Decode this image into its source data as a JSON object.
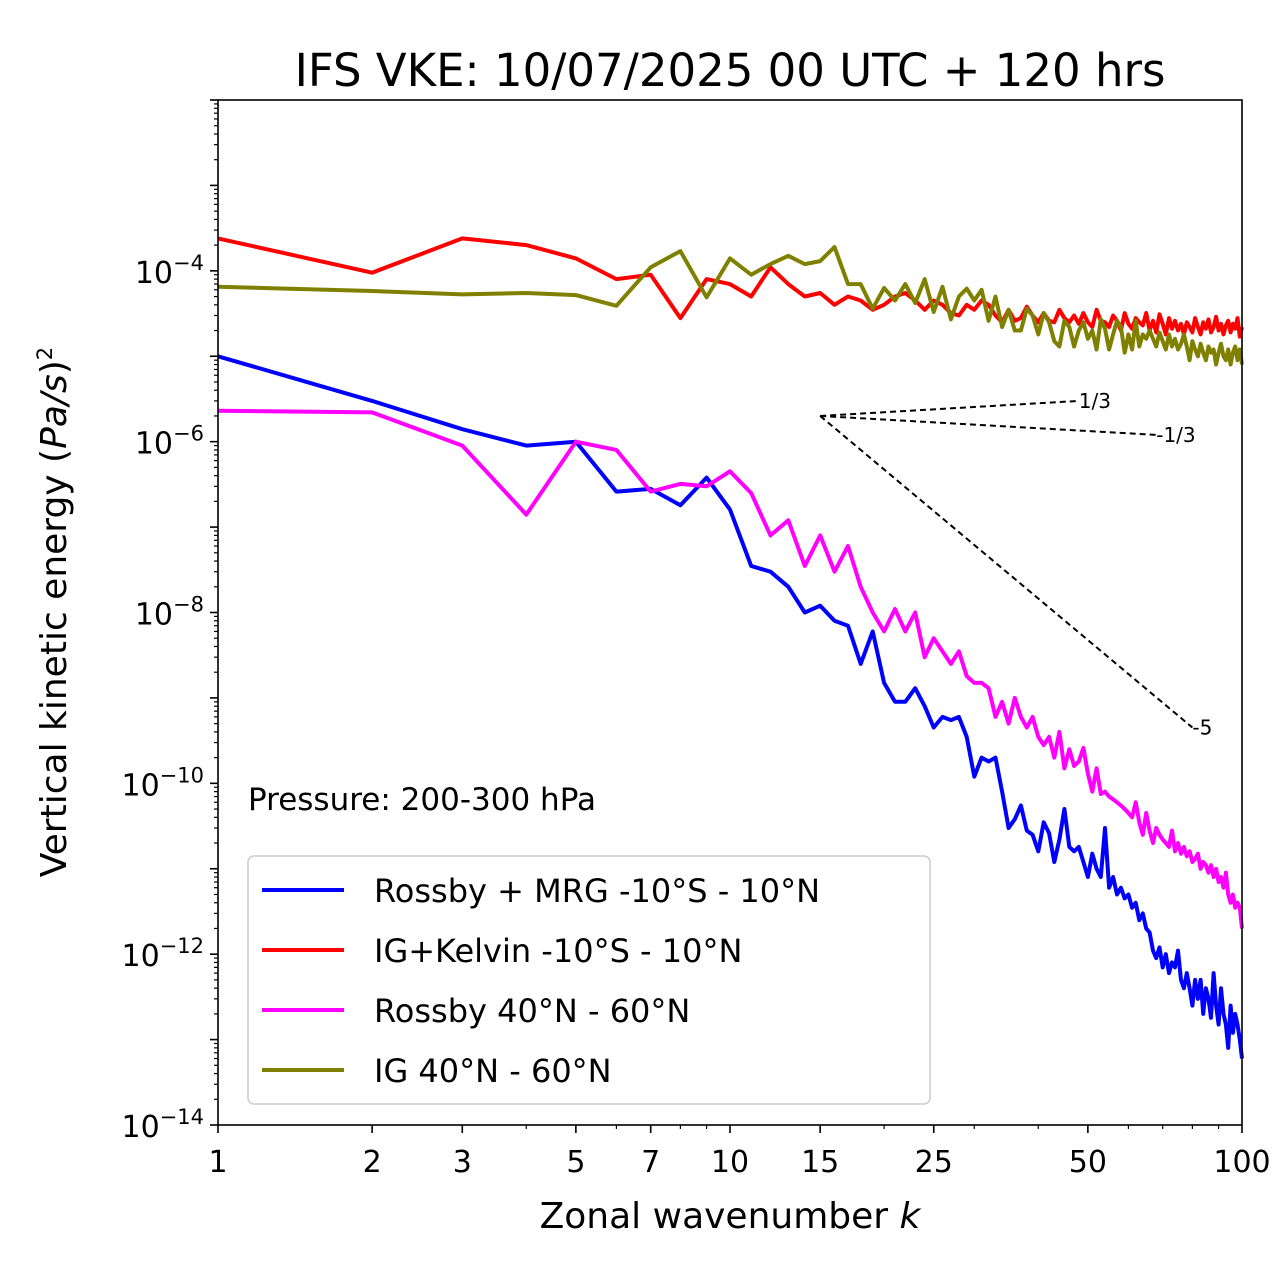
{
  "chart_data": {
    "type": "line",
    "title": "IFS VKE: 10/07/2025 00 UTC + 120 hrs",
    "xlabel_text": "Zonal wavenumber ",
    "xlabel_italic": "k",
    "ylabel": {
      "prefix": "Vertical kinetic energy (",
      "unit_italic": "Pa/s",
      "suffix": ")",
      "exponent": "2"
    },
    "xscale": "log",
    "yscale": "log",
    "xlim": [
      1,
      100
    ],
    "ylim": [
      1e-14,
      0.01
    ],
    "xticks": [
      {
        "value": 1,
        "label": "1"
      },
      {
        "value": 2,
        "label": "2"
      },
      {
        "value": 3,
        "label": "3"
      },
      {
        "value": 5,
        "label": "5"
      },
      {
        "value": 7,
        "label": "7"
      },
      {
        "value": 10,
        "label": "10"
      },
      {
        "value": 15,
        "label": "15"
      },
      {
        "value": 25,
        "label": "25"
      },
      {
        "value": 50,
        "label": "50"
      },
      {
        "value": 100,
        "label": "100"
      }
    ],
    "yticks": [
      {
        "value": -4,
        "base": "10",
        "exp": "−4"
      },
      {
        "value": -6,
        "base": "10",
        "exp": "−6"
      },
      {
        "value": -8,
        "base": "10",
        "exp": "−8"
      },
      {
        "value": -10,
        "base": "10",
        "exp": "−10"
      },
      {
        "value": -12,
        "base": "10",
        "exp": "−12"
      },
      {
        "value": -14,
        "base": "10",
        "exp": "−14"
      }
    ],
    "annotation": "Pressure: 200-300 hPa",
    "legend_position": "lower-left",
    "series": [
      {
        "name": "Rossby + MRG -10°S - 10°N",
        "color": "#0000ff",
        "x": [
          1,
          2,
          3,
          4,
          5,
          6,
          7,
          8,
          9,
          10,
          11,
          12,
          13,
          14,
          15,
          16,
          17,
          18,
          19,
          20,
          21,
          22,
          23,
          24,
          25,
          26,
          27,
          28,
          29,
          30,
          31,
          32,
          33,
          34,
          35,
          36,
          37,
          38,
          39,
          40,
          41,
          42,
          43,
          44,
          45,
          46,
          47,
          48,
          49,
          50,
          51,
          52,
          53,
          54,
          55,
          56,
          57,
          58,
          59,
          60,
          61,
          62,
          63,
          64,
          65,
          66,
          67,
          68,
          69,
          70,
          71,
          72,
          73,
          74,
          75,
          76,
          77,
          78,
          79,
          80,
          81,
          82,
          83,
          84,
          85,
          86,
          87,
          88,
          89,
          90,
          91,
          92,
          93,
          94,
          95,
          96,
          97,
          98,
          99,
          100
        ],
        "y": [
          1e-05,
          3e-06,
          1.4e-06,
          9e-07,
          1e-06,
          2.6e-07,
          2.8e-07,
          1.8e-07,
          3.8e-07,
          1.6e-07,
          3.5e-08,
          3e-08,
          2e-08,
          1e-08,
          1.2e-08,
          8e-09,
          7e-09,
          2.5e-09,
          6e-09,
          1.5e-09,
          9e-10,
          9e-10,
          1.3e-09,
          8e-10,
          4.5e-10,
          6e-10,
          5.5e-10,
          6e-10,
          3.5e-10,
          1.2e-10,
          2e-10,
          1.8e-10,
          2e-10,
          8e-11,
          3e-11,
          3.8e-11,
          5.5e-11,
          2.8e-11,
          2.5e-11,
          1.6e-11,
          3.5e-11,
          2.6e-11,
          1.2e-11,
          2.2e-11,
          5e-11,
          1.8e-11,
          1.6e-11,
          1.8e-11,
          1.2e-11,
          8e-12,
          1.5e-11,
          1e-11,
          8e-12,
          3e-11,
          6e-12,
          8e-12,
          5e-12,
          6e-12,
          4.5e-12,
          5e-12,
          3.5e-12,
          4e-12,
          2.5e-12,
          3e-12,
          2e-12,
          1.8e-12,
          1.1e-12,
          9e-13,
          1.2e-12,
          7e-13,
          1e-12,
          6e-13,
          8e-13,
          7e-13,
          1.1e-12,
          5e-13,
          4e-13,
          6e-13,
          4e-13,
          2.5e-13,
          5e-13,
          3e-13,
          5e-13,
          2e-13,
          4e-13,
          3e-13,
          1.8e-13,
          6e-13,
          2.5e-13,
          1.5e-13,
          4e-13,
          2e-13,
          1.5e-13,
          8e-14,
          2.5e-13,
          1.2e-13,
          2e-13,
          1.5e-13,
          1e-13,
          6e-14
        ]
      },
      {
        "name": "IG+Kelvin -10°S - 10°N",
        "color": "#ff0000",
        "x": [
          1,
          2,
          3,
          4,
          5,
          6,
          7,
          8,
          9,
          10,
          11,
          12,
          13,
          14,
          15,
          16,
          17,
          18,
          19,
          20,
          21,
          22,
          23,
          24,
          25,
          26,
          27,
          28,
          29,
          30,
          31,
          32,
          33,
          34,
          35,
          36,
          37,
          38,
          39,
          40,
          41,
          42,
          43,
          44,
          45,
          46,
          47,
          48,
          49,
          50,
          51,
          52,
          53,
          54,
          55,
          56,
          57,
          58,
          59,
          60,
          61,
          62,
          63,
          64,
          65,
          66,
          67,
          68,
          69,
          70,
          71,
          72,
          73,
          74,
          75,
          76,
          77,
          78,
          79,
          80,
          81,
          82,
          83,
          84,
          85,
          86,
          87,
          88,
          89,
          90,
          91,
          92,
          93,
          94,
          95,
          96,
          97,
          98,
          99,
          100
        ],
        "y": [
          0.00024,
          9.5e-05,
          0.00024,
          0.0002,
          0.00014,
          8e-05,
          9e-05,
          2.8e-05,
          8e-05,
          7e-05,
          5e-05,
          0.00011,
          7e-05,
          5e-05,
          5.5e-05,
          4e-05,
          5e-05,
          4.5e-05,
          3.5e-05,
          4e-05,
          5e-05,
          5.5e-05,
          4.5e-05,
          3.5e-05,
          4.5e-05,
          4e-05,
          3.2e-05,
          3e-05,
          4e-05,
          3.5e-05,
          4.5e-05,
          4e-05,
          3e-05,
          2.5e-05,
          3.5e-05,
          2.6e-05,
          2.8e-05,
          3.8e-05,
          3e-05,
          2.5e-05,
          3.2e-05,
          2.6e-05,
          2.5e-05,
          3.5e-05,
          2.8e-05,
          2.5e-05,
          3e-05,
          2.4e-05,
          3.2e-05,
          2.5e-05,
          2.2e-05,
          3.5e-05,
          2.6e-05,
          2.5e-05,
          2.2e-05,
          3e-05,
          2.6e-05,
          2e-05,
          3.2e-05,
          2.4e-05,
          2.1e-05,
          2.8e-05,
          2.5e-05,
          2.3e-05,
          3.2e-05,
          2e-05,
          2.6e-05,
          1.9e-05,
          3.1e-05,
          2.4e-05,
          1.8e-05,
          2.8e-05,
          2.1e-05,
          2.6e-05,
          2e-05,
          2.4e-05,
          1.8e-05,
          2.5e-05,
          2.2e-05,
          1.9e-05,
          2.8e-05,
          2.2e-05,
          1.8e-05,
          2.5e-05,
          2.1e-05,
          2.7e-05,
          1.9e-05,
          2.2e-05,
          2.9e-05,
          2e-05,
          2.4e-05,
          1.8e-05,
          2.3e-05,
          2.6e-05,
          1.9e-05,
          2.4e-05,
          2.1e-05,
          2.8e-05,
          1.7e-05,
          2.2e-05
        ]
      },
      {
        "name": "Rossby 40°N - 60°N",
        "color": "#ff00ff",
        "x": [
          1,
          2,
          3,
          4,
          5,
          6,
          7,
          8,
          9,
          10,
          11,
          12,
          13,
          14,
          15,
          16,
          17,
          18,
          19,
          20,
          21,
          22,
          23,
          24,
          25,
          26,
          27,
          28,
          29,
          30,
          31,
          32,
          33,
          34,
          35,
          36,
          37,
          38,
          39,
          40,
          41,
          42,
          43,
          44,
          45,
          46,
          47,
          48,
          49,
          50,
          51,
          52,
          53,
          54,
          55,
          56,
          57,
          58,
          59,
          60,
          61,
          62,
          63,
          64,
          65,
          66,
          67,
          68,
          69,
          70,
          71,
          72,
          73,
          74,
          75,
          76,
          77,
          78,
          79,
          80,
          81,
          82,
          83,
          84,
          85,
          86,
          87,
          88,
          89,
          90,
          91,
          92,
          93,
          94,
          95,
          96,
          97,
          98,
          99,
          100
        ],
        "y": [
          2.3e-06,
          2.2e-06,
          9e-07,
          1.4e-07,
          1e-06,
          8e-07,
          2.6e-07,
          3.2e-07,
          3e-07,
          4.5e-07,
          2.5e-07,
          8e-08,
          1.2e-07,
          3.5e-08,
          8e-08,
          3e-08,
          6e-08,
          2e-08,
          1e-08,
          6e-09,
          1.1e-08,
          6e-09,
          1e-08,
          3e-09,
          5e-09,
          3.5e-09,
          2.5e-09,
          3.5e-09,
          1.8e-09,
          1.5e-09,
          1.5e-09,
          1.3e-09,
          6e-10,
          9e-10,
          5e-10,
          1e-09,
          6e-10,
          4.5e-10,
          6e-10,
          3.5e-10,
          2.8e-10,
          3.5e-10,
          2e-10,
          4e-10,
          1.5e-10,
          2.5e-10,
          1.6e-10,
          1.8e-10,
          2.6e-10,
          1.3e-10,
          8e-11,
          1.5e-10,
          7.5e-11,
          8e-11,
          7e-11,
          6.5e-11,
          6e-11,
          5.5e-11,
          5e-11,
          4.5e-11,
          4e-11,
          6e-11,
          3.5e-11,
          2.5e-11,
          4.5e-11,
          2.8e-11,
          2e-11,
          3e-11,
          2.5e-11,
          2.2e-11,
          2e-11,
          1.8e-11,
          2.8e-11,
          1.6e-11,
          2e-11,
          1.5e-11,
          1.8e-11,
          1.4e-11,
          1.6e-11,
          1.2e-11,
          1.3e-11,
          1.5e-11,
          1e-11,
          1.2e-11,
          1.1e-11,
          9e-12,
          1.1e-11,
          8e-12,
          1e-11,
          7e-12,
          8e-12,
          6e-12,
          9e-12,
          5e-12,
          4e-12,
          5e-12,
          3.5e-12,
          4e-12,
          3.5e-12,
          2e-12
        ]
      },
      {
        "name": "IG 40°N - 60°N",
        "color": "#808000",
        "x": [
          1,
          2,
          3,
          4,
          5,
          6,
          7,
          8,
          9,
          10,
          11,
          12,
          13,
          14,
          15,
          16,
          17,
          18,
          19,
          20,
          21,
          22,
          23,
          24,
          25,
          26,
          27,
          28,
          29,
          30,
          31,
          32,
          33,
          34,
          35,
          36,
          37,
          38,
          39,
          40,
          41,
          42,
          43,
          44,
          45,
          46,
          47,
          48,
          49,
          50,
          51,
          52,
          53,
          54,
          55,
          56,
          57,
          58,
          59,
          60,
          61,
          62,
          63,
          64,
          65,
          66,
          67,
          68,
          69,
          70,
          71,
          72,
          73,
          74,
          75,
          76,
          77,
          78,
          79,
          80,
          81,
          82,
          83,
          84,
          85,
          86,
          87,
          88,
          89,
          90,
          91,
          92,
          93,
          94,
          95,
          96,
          97,
          98,
          99,
          100
        ],
        "y": [
          6.5e-05,
          5.8e-05,
          5.3e-05,
          5.5e-05,
          5.2e-05,
          3.9e-05,
          0.00011,
          0.00017,
          4.9e-05,
          0.00014,
          9e-05,
          0.00012,
          0.00015,
          0.00012,
          0.00013,
          0.00019,
          7e-05,
          7e-05,
          3.6e-05,
          6.3e-05,
          4.5e-05,
          7e-05,
          4.2e-05,
          8e-05,
          3.3e-05,
          6.5e-05,
          2.7e-05,
          5e-05,
          6.2e-05,
          4.5e-05,
          6e-05,
          2.6e-05,
          5e-05,
          2.2e-05,
          3.5e-05,
          2e-05,
          2e-05,
          3.6e-05,
          3e-05,
          1.8e-05,
          3.2e-05,
          2.5e-05,
          1.5e-05,
          1.3e-05,
          2.6e-05,
          2.2e-05,
          1.3e-05,
          2e-05,
          2.5e-05,
          1.6e-05,
          2e-05,
          1.2e-05,
          2.7e-05,
          2.1e-05,
          1.2e-05,
          1.8e-05,
          2.6e-05,
          2.2e-05,
          1.1e-05,
          1.8e-05,
          1.2e-05,
          2.6e-05,
          1.3e-05,
          1.8e-05,
          1.6e-05,
          2e-05,
          1.6e-05,
          1.3e-05,
          1.9e-05,
          1.5e-05,
          1.2e-05,
          1.8e-05,
          1.3e-05,
          1.6e-05,
          1.2e-05,
          1.4e-05,
          1.8e-05,
          1.3e-05,
          9e-06,
          1.5e-05,
          1.2e-05,
          1e-05,
          1.4e-05,
          1.1e-05,
          9e-06,
          1.3e-05,
          1.1e-05,
          1.2e-05,
          8e-06,
          1.1e-05,
          1.4e-05,
          1e-05,
          9e-06,
          1.2e-05,
          8e-06,
          1.1e-05,
          1.3e-05,
          9e-06,
          1.2e-05,
          8e-06
        ]
      }
    ],
    "reference_slopes": [
      {
        "label": "1/3",
        "x0": 15,
        "y0": 2e-06,
        "x1": 48,
        "y1": 3e-06
      },
      {
        "label": "-1/3",
        "x0": 15,
        "y0": 2e-06,
        "x1": 68,
        "y1": 1.2e-06
      },
      {
        "label": "-5",
        "x0": 15,
        "y0": 2e-06,
        "x1": 80,
        "y1": 4.5e-10
      }
    ]
  }
}
